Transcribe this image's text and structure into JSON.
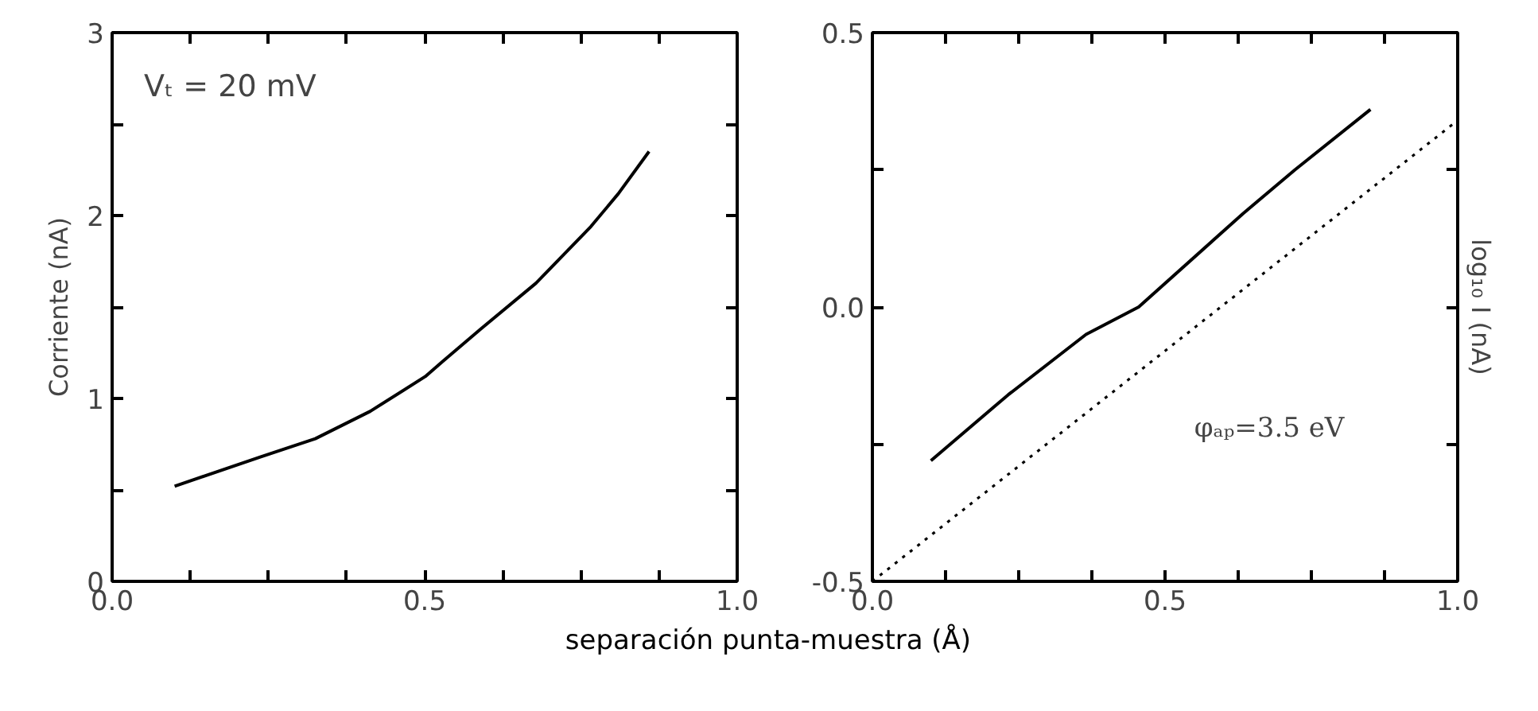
{
  "chart_data": [
    {
      "type": "line",
      "xlabel": "separación punta-muestra (Å)",
      "ylabel": "Corriente (nA)",
      "annotations": [
        "Vₜ = 20 mV"
      ],
      "xlim": [
        0,
        1
      ],
      "ylim": [
        0,
        3
      ],
      "xticks": [
        {
          "value": 0,
          "label": "0.0"
        },
        {
          "value": 0.125,
          "label": null
        },
        {
          "value": 0.25,
          "label": null
        },
        {
          "value": 0.375,
          "label": null
        },
        {
          "value": 0.5,
          "label": "0.5"
        },
        {
          "value": 0.625,
          "label": null
        },
        {
          "value": 0.75,
          "label": null
        },
        {
          "value": 0.875,
          "label": null
        },
        {
          "value": 1,
          "label": "1.0"
        }
      ],
      "yticks": [
        0,
        {
          "value": 0.5,
          "label": null
        },
        1,
        {
          "value": 1.5,
          "label": null
        },
        2,
        {
          "value": 2.5,
          "label": null
        },
        3
      ],
      "grid": false,
      "series": [
        {
          "color": "#000000",
          "line_style": "solid",
          "x": [
            0.1,
            0.237,
            0.325,
            0.413,
            0.501,
            0.528,
            0.59,
            0.678,
            0.766,
            0.81,
            0.859
          ],
          "values": [
            0.52,
            0.68,
            0.78,
            0.93,
            1.12,
            1.2,
            1.38,
            1.63,
            1.94,
            2.12,
            2.35
          ]
        }
      ]
    },
    {
      "type": "line",
      "ylabel": "log₁₀ I (nA)",
      "annotations": [
        "φₐₚ=3.5 eV"
      ],
      "xlim": [
        0,
        1
      ],
      "ylim": [
        -0.5,
        0.5
      ],
      "xticks": [
        {
          "value": 0,
          "label": "0.0"
        },
        {
          "value": 0.125,
          "label": null
        },
        {
          "value": 0.25,
          "label": null
        },
        {
          "value": 0.375,
          "label": null
        },
        {
          "value": 0.5,
          "label": "0.5"
        },
        {
          "value": 0.625,
          "label": null
        },
        {
          "value": 0.75,
          "label": null
        },
        {
          "value": 0.875,
          "label": null
        },
        {
          "value": 1,
          "label": "1.0"
        }
      ],
      "yticks": [
        {
          "value": -0.5,
          "label": "-0.5"
        },
        {
          "value": -0.25,
          "label": null
        },
        {
          "value": 0,
          "label": "0.0"
        },
        {
          "value": 0.25,
          "label": null
        },
        {
          "value": 0.5,
          "label": "0.5"
        }
      ],
      "grid": false,
      "series": [
        {
          "color": "#000000",
          "line_style": "solid",
          "x": [
            0.1,
            0.232,
            0.365,
            0.455,
            0.633,
            0.722,
            0.851
          ],
          "values": [
            -0.28,
            -0.16,
            -0.05,
            0.0,
            0.17,
            0.25,
            0.36
          ]
        },
        {
          "color": "#000000",
          "line_style": "dotted",
          "x": [
            0,
            1
          ],
          "values": [
            -0.5,
            0.34
          ]
        }
      ]
    }
  ]
}
